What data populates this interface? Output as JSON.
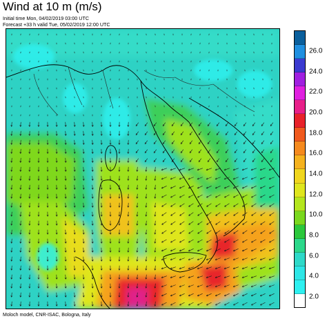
{
  "header": {
    "title": "Wind at 10 m (m/s)",
    "initial_time": "Initial time  Mon, 04/02/2019 03:00 UTC",
    "forecast": "Forecast +33 h valid  Tue, 05/02/2019 12:00 UTC"
  },
  "footer": {
    "credit": "Moloch model, CNR-ISAC, Bologna, Italy"
  },
  "legend": {
    "labels": [
      "26.0",
      "24.0",
      "22.0",
      "20.0",
      "18.0",
      "16.0",
      "14.0",
      "12.0",
      "10.0",
      "8.0",
      "6.0",
      "4.0",
      "2.0"
    ],
    "colors_top_to_bottom": [
      "#0a5f9c",
      "#1f8fe0",
      "#3a3ad0",
      "#a020e0",
      "#e020e0",
      "#e8208a",
      "#e8222a",
      "#f05a1e",
      "#f58a1e",
      "#f5b21e",
      "#f0d61e",
      "#dfe61e",
      "#b4e61e",
      "#7ad81e",
      "#2cc83c",
      "#2cd88a",
      "#2ed9c8",
      "#2ee6e6",
      "#2ef0f0",
      "#ffffff"
    ]
  },
  "map": {
    "field_colors": {
      "sea_base": "#2fd2c4",
      "light": "#2ef0ee",
      "green": "#3ccf5a",
      "lime": "#9ee21e",
      "yellow": "#e8dd1e",
      "orange": "#f5a21e",
      "red": "#e8262a",
      "magenta": "#e0208a"
    },
    "coastline_color": "#000000",
    "border_color": "#222222",
    "arrow_color": "#1a1a1a"
  }
}
